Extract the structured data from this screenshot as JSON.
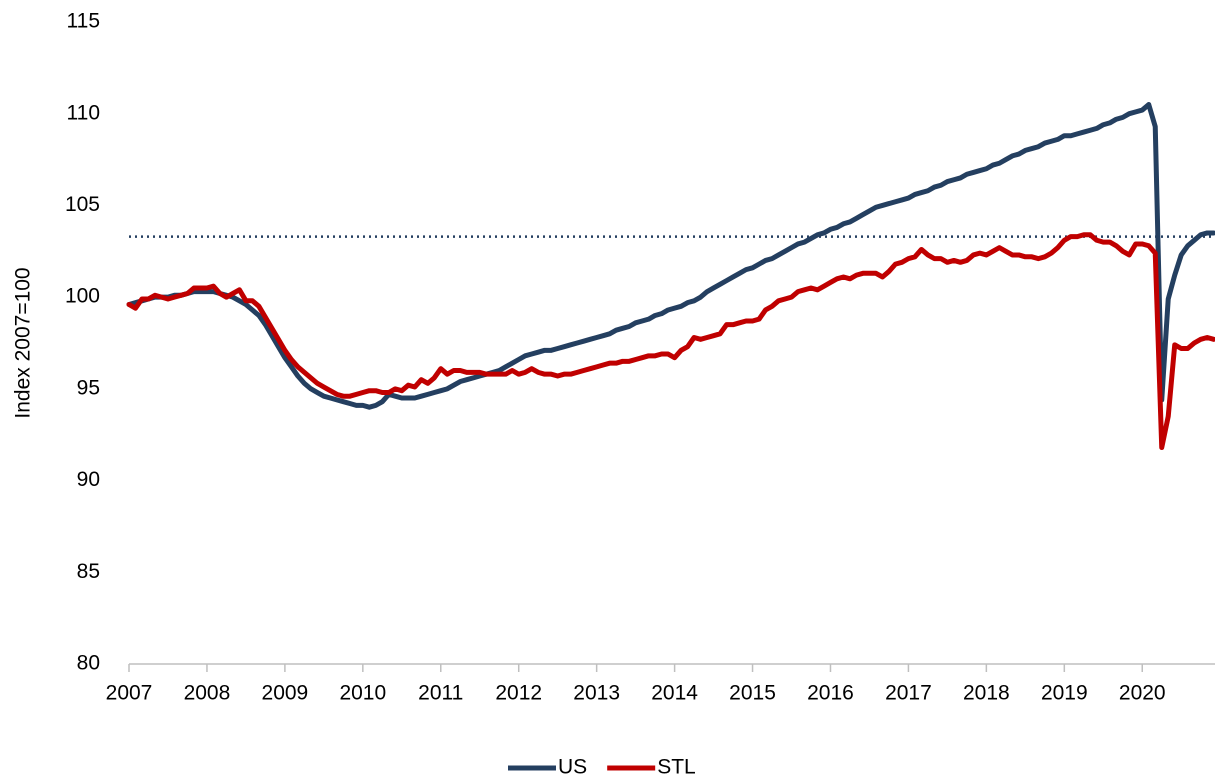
{
  "chart_data": {
    "type": "line",
    "y_label": "Index 2007=100",
    "categories": [
      "2007",
      null,
      null,
      null,
      null,
      null,
      null,
      null,
      null,
      null,
      null,
      null,
      "2008",
      null,
      null,
      null,
      null,
      null,
      null,
      null,
      null,
      null,
      null,
      null,
      "2009",
      null,
      null,
      null,
      null,
      null,
      null,
      null,
      null,
      null,
      null,
      null,
      "2010",
      null,
      null,
      null,
      null,
      null,
      null,
      null,
      null,
      null,
      null,
      null,
      "2011",
      null,
      null,
      null,
      null,
      null,
      null,
      null,
      null,
      null,
      null,
      null,
      "2012",
      null,
      null,
      null,
      null,
      null,
      null,
      null,
      null,
      null,
      null,
      null,
      "2013",
      null,
      null,
      null,
      null,
      null,
      null,
      null,
      null,
      null,
      null,
      null,
      "2014",
      null,
      null,
      null,
      null,
      null,
      null,
      null,
      null,
      null,
      null,
      null,
      "2015",
      null,
      null,
      null,
      null,
      null,
      null,
      null,
      null,
      null,
      null,
      null,
      "2016",
      null,
      null,
      null,
      null,
      null,
      null,
      null,
      null,
      null,
      null,
      null,
      "2017",
      null,
      null,
      null,
      null,
      null,
      null,
      null,
      null,
      null,
      null,
      null,
      "2018",
      null,
      null,
      null,
      null,
      null,
      null,
      null,
      null,
      null,
      null,
      null,
      "2019",
      null,
      null,
      null,
      null,
      null,
      null,
      null,
      null,
      null,
      null,
      null,
      "2020",
      null,
      null,
      null,
      null,
      null,
      null,
      null,
      null,
      null,
      null,
      null
    ],
    "series": [
      {
        "name": "US",
        "color": "#243f60",
        "values": [
          99.6,
          99.7,
          99.8,
          99.9,
          100.0,
          100.0,
          100.0,
          100.1,
          100.1,
          100.2,
          100.3,
          100.3,
          100.3,
          100.3,
          100.2,
          100.1,
          100.0,
          99.8,
          99.6,
          99.3,
          99.0,
          98.5,
          97.9,
          97.3,
          96.7,
          96.2,
          95.7,
          95.3,
          95.0,
          94.8,
          94.6,
          94.5,
          94.4,
          94.3,
          94.2,
          94.1,
          94.1,
          94.0,
          94.1,
          94.3,
          94.7,
          94.6,
          94.5,
          94.5,
          94.5,
          94.6,
          94.7,
          94.8,
          94.9,
          95.0,
          95.2,
          95.4,
          95.5,
          95.6,
          95.7,
          95.8,
          95.9,
          96.0,
          96.2,
          96.4,
          96.6,
          96.8,
          96.9,
          97.0,
          97.1,
          97.1,
          97.2,
          97.3,
          97.4,
          97.5,
          97.6,
          97.7,
          97.8,
          97.9,
          98.0,
          98.2,
          98.3,
          98.4,
          98.6,
          98.7,
          98.8,
          99.0,
          99.1,
          99.3,
          99.4,
          99.5,
          99.7,
          99.8,
          100.0,
          100.3,
          100.5,
          100.7,
          100.9,
          101.1,
          101.3,
          101.5,
          101.6,
          101.8,
          102.0,
          102.1,
          102.3,
          102.5,
          102.7,
          102.9,
          103.0,
          103.2,
          103.4,
          103.5,
          103.7,
          103.8,
          104.0,
          104.1,
          104.3,
          104.5,
          104.7,
          104.9,
          105.0,
          105.1,
          105.2,
          105.3,
          105.4,
          105.6,
          105.7,
          105.8,
          106.0,
          106.1,
          106.3,
          106.4,
          106.5,
          106.7,
          106.8,
          106.9,
          107.0,
          107.2,
          107.3,
          107.5,
          107.7,
          107.8,
          108.0,
          108.1,
          108.2,
          108.4,
          108.5,
          108.6,
          108.8,
          108.8,
          108.9,
          109.0,
          109.1,
          109.2,
          109.4,
          109.5,
          109.7,
          109.8,
          110.0,
          110.1,
          110.2,
          110.5,
          109.3,
          94.4,
          99.9,
          101.2,
          102.3,
          102.8,
          103.1,
          103.4,
          103.5,
          103.5
        ]
      },
      {
        "name": "STL",
        "color": "#c00000",
        "values": [
          99.6,
          99.4,
          99.9,
          99.9,
          100.1,
          100.0,
          99.9,
          100.0,
          100.1,
          100.2,
          100.5,
          100.5,
          100.5,
          100.6,
          100.2,
          100.0,
          100.2,
          100.4,
          99.8,
          99.8,
          99.5,
          98.9,
          98.3,
          97.7,
          97.1,
          96.6,
          96.2,
          95.9,
          95.6,
          95.3,
          95.1,
          94.9,
          94.7,
          94.6,
          94.6,
          94.7,
          94.8,
          94.9,
          94.9,
          94.8,
          94.8,
          95.0,
          94.9,
          95.2,
          95.1,
          95.5,
          95.3,
          95.6,
          96.1,
          95.8,
          96.0,
          96.0,
          95.9,
          95.9,
          95.9,
          95.8,
          95.8,
          95.8,
          95.8,
          96.0,
          95.8,
          95.9,
          96.1,
          95.9,
          95.8,
          95.8,
          95.7,
          95.8,
          95.8,
          95.9,
          96.0,
          96.1,
          96.2,
          96.3,
          96.4,
          96.4,
          96.5,
          96.5,
          96.6,
          96.7,
          96.8,
          96.8,
          96.9,
          96.9,
          96.7,
          97.1,
          97.3,
          97.8,
          97.7,
          97.8,
          97.9,
          98.0,
          98.5,
          98.5,
          98.6,
          98.7,
          98.7,
          98.8,
          99.3,
          99.5,
          99.8,
          99.9,
          100.0,
          100.3,
          100.4,
          100.5,
          100.4,
          100.6,
          100.8,
          101.0,
          101.1,
          101.0,
          101.2,
          101.3,
          101.3,
          101.3,
          101.1,
          101.4,
          101.8,
          101.9,
          102.1,
          102.2,
          102.6,
          102.3,
          102.1,
          102.1,
          101.9,
          102.0,
          101.9,
          102.0,
          102.3,
          102.4,
          102.3,
          102.5,
          102.7,
          102.5,
          102.3,
          102.3,
          102.2,
          102.2,
          102.1,
          102.2,
          102.4,
          102.7,
          103.1,
          103.3,
          103.3,
          103.4,
          103.4,
          103.1,
          103.0,
          103.0,
          102.8,
          102.5,
          102.3,
          102.9,
          102.9,
          102.8,
          102.4,
          91.8,
          93.5,
          97.4,
          97.2,
          97.2,
          97.5,
          97.7,
          97.8,
          97.7
        ]
      }
    ],
    "reference_line": {
      "value": 103.3,
      "color": "#243f60",
      "style": "dotted"
    },
    "ylim": [
      80,
      115
    ],
    "yticks": [
      80,
      85,
      90,
      95,
      100,
      105,
      110,
      115
    ],
    "grid": false,
    "legend": "bottom"
  }
}
